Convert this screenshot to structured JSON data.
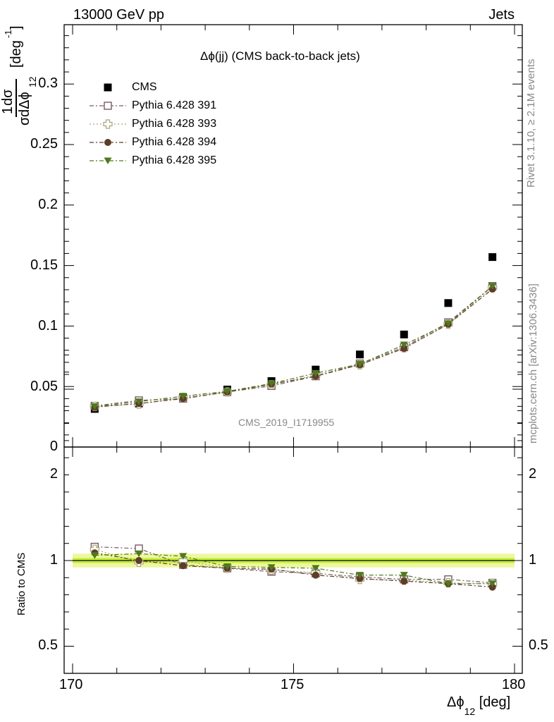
{
  "header": {
    "left": "13000 GeV pp",
    "right": "Jets"
  },
  "side_texts": {
    "rivet": "Rivet 3.1.10, ≥ 2.1M events",
    "mcplots": "mcplots.cern.ch [arXiv:1306.3436]"
  },
  "colors": {
    "cms": "#000000",
    "p391": "#7a5a66",
    "p393": "#a6a57a",
    "p394": "#5e3d27",
    "p395": "#4f7a1c",
    "band_outer": "#eef7a0",
    "band_inner": "#c4ef3a"
  },
  "chart_data": [
    {
      "type": "scatter",
      "title": "Δϕ(jj) (CMS back-to-back jets)",
      "watermark": "CMS_2019_I1719955",
      "ylabel": {
        "frac_num": "1",
        "frac_num2": "dσ",
        "frac_den": "σ",
        "frac_den2": "dΔϕ",
        "sub": "12",
        "unit": "[deg",
        "unit_exp": "-1",
        "unit_close": "]"
      },
      "xlim": [
        170,
        180
      ],
      "ylim": [
        0,
        0.35
      ],
      "yticks": [
        "0",
        "0.05",
        "0.1",
        "0.15",
        "0.2",
        "0.25",
        "0.3"
      ],
      "x": [
        170.5,
        171.5,
        172.5,
        173.5,
        174.5,
        175.5,
        176.5,
        177.5,
        178.5,
        179.5
      ],
      "legend": [
        "CMS",
        "Pythia 6.428 391",
        "Pythia 6.428 393",
        "Pythia 6.428 394",
        "Pythia 6.428 395"
      ],
      "series": [
        {
          "name": "CMS",
          "marker": "square-filled",
          "values": [
            0.0315,
            0.036,
            0.041,
            0.0475,
            0.0545,
            0.064,
            0.0765,
            0.093,
            0.119,
            0.157
          ]
        },
        {
          "name": "Pythia 6.428 391",
          "marker": "square-open",
          "values": [
            0.034,
            0.0385,
            0.04,
            0.0455,
            0.0505,
            0.0585,
            0.069,
            0.0825,
            0.103,
            0.133
          ]
        },
        {
          "name": "Pythia 6.428 393",
          "marker": "cross-open",
          "values": [
            0.0335,
            0.0355,
            0.041,
            0.0455,
            0.0515,
            0.0595,
            0.068,
            0.082,
            0.1015,
            0.132
          ]
        },
        {
          "name": "Pythia 6.428 394",
          "marker": "circle-filled",
          "values": [
            0.033,
            0.036,
            0.04,
            0.0455,
            0.052,
            0.0585,
            0.068,
            0.0815,
            0.1015,
            0.1305
          ]
        },
        {
          "name": "Pythia 6.428 395",
          "marker": "triangle-down-filled",
          "values": [
            0.0335,
            0.0375,
            0.042,
            0.046,
            0.0525,
            0.061,
            0.0685,
            0.0845,
            0.102,
            0.133
          ]
        }
      ]
    },
    {
      "type": "scatter",
      "ylabel": "Ratio to CMS",
      "xlabel": {
        "main": "Δϕ",
        "sub": "12",
        "unit": "[deg]"
      },
      "xlim": [
        170,
        180
      ],
      "xticks": [
        "170",
        "175",
        "180"
      ],
      "ylim": [
        0.4,
        2.3
      ],
      "yticks": [
        "0.5",
        "1",
        "2"
      ],
      "x": [
        170.5,
        171.5,
        172.5,
        173.5,
        174.5,
        175.5,
        176.5,
        177.5,
        178.5,
        179.5
      ],
      "series": [
        {
          "name": "Pythia 6.428 391",
          "values": [
            1.08,
            1.07,
            0.975,
            0.955,
            0.935,
            0.925,
            0.905,
            0.89,
            0.89,
            0.87
          ]
        },
        {
          "name": "Pythia 6.428 393",
          "values": [
            1.065,
            0.99,
            1.0,
            0.955,
            0.945,
            0.93,
            0.89,
            0.885,
            0.87,
            0.865
          ]
        },
        {
          "name": "Pythia 6.428 394",
          "values": [
            1.045,
            1.0,
            0.97,
            0.955,
            0.95,
            0.915,
            0.895,
            0.88,
            0.865,
            0.845
          ]
        },
        {
          "name": "Pythia 6.428 395",
          "values": [
            1.03,
            1.04,
            1.025,
            0.965,
            0.96,
            0.955,
            0.915,
            0.915,
            0.865,
            0.865
          ]
        }
      ]
    }
  ]
}
